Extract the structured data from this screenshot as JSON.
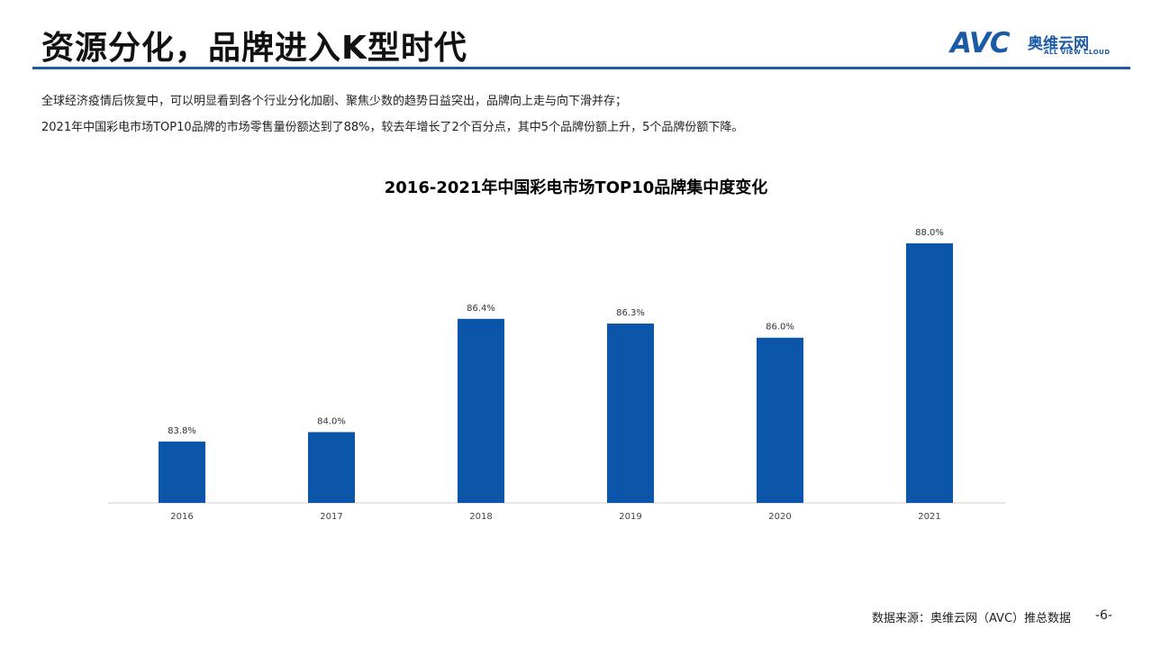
{
  "header": {
    "title": "资源分化，品牌进入K型时代",
    "accent_color": "#1b5aa6"
  },
  "logo": {
    "brand": "AVC",
    "cn": "奥维云网",
    "en": "ALL VIEW CLOUD"
  },
  "description": [
    "全球经济疫情后恢复中，可以明显看到各个行业分化加剧、聚焦少数的趋势日益突出，品牌向上走与向下滑并存；",
    "2021年中国彩电市场TOP10品牌的市场零售量份额达到了88%，较去年增长了2个百分点，其中5个品牌份额上升，5个品牌份额下降。"
  ],
  "chart_data": {
    "type": "bar",
    "title": "2016-2021年中国彩电市场TOP10品牌集中度变化",
    "categories": [
      "2016",
      "2017",
      "2018",
      "2019",
      "2020",
      "2021"
    ],
    "values": [
      83.8,
      84.0,
      86.4,
      86.3,
      86.0,
      88.0
    ],
    "data_labels": [
      "83.8%",
      "84.0%",
      "86.4%",
      "86.3%",
      "86.0%",
      "88.0%"
    ],
    "bar_color": "#0b56a8",
    "xlabel": "",
    "ylabel": ""
  },
  "footer": {
    "source": "数据来源：奥维云网（AVC）推总数据",
    "page": "-6-"
  }
}
